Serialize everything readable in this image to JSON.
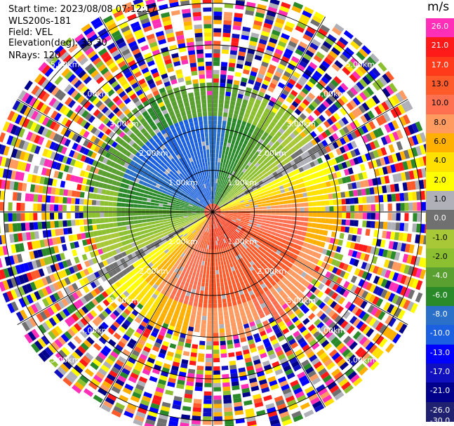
{
  "header": {
    "start_time": "Start time: 2023/08/08 07:12:17",
    "site": "WLS200s-181",
    "field": "Field: VEL",
    "elevation": "Elevation(deg): 35.30",
    "nrays": "NRays: 120"
  },
  "colorbar": {
    "unit": "m/s",
    "ticks": [
      "26.0",
      "21.0",
      "17.0",
      "13.0",
      "10.0",
      "8.0",
      "6.0",
      "4.0",
      "2.0",
      "1.0",
      "0.0",
      "-1.0",
      "-2.0",
      "-4.0",
      "-6.0",
      "-8.0",
      "-10.0",
      "-13.0",
      "-17.0",
      "-21.0",
      "-26.0",
      "-30.0"
    ],
    "colors": [
      "#ff2fb8",
      "#ff1a1a",
      "#ff3a1a",
      "#ff5a2a",
      "#ff7050",
      "#ff9a60",
      "#ffb000",
      "#ffe000",
      "#ffff00",
      "#b0b0b8",
      "#707070",
      "#a8c838",
      "#8cc030",
      "#5aa030",
      "#2a8a2a",
      "#2a70c8",
      "#1a60e0",
      "#0000ff",
      "#1010c0",
      "#00008a",
      "#202070"
    ]
  },
  "chart_data": {
    "type": "heatmap",
    "projection": "polar PPI",
    "field": "VEL",
    "units": "m/s",
    "value_range": [
      -30,
      26
    ],
    "nrays": 120,
    "range_rings": [
      {
        "km": 1.0,
        "label": "1.00km"
      },
      {
        "km": 2.0,
        "label": "2.00km"
      },
      {
        "km": 3.0,
        "label": "3.00km"
      },
      {
        "km": 4.0,
        "label": "4.00km"
      },
      {
        "km": 5.0,
        "label": "5.00km"
      }
    ],
    "max_range_km": 5.4,
    "spoke_azimuths_deg": [
      0,
      30,
      60,
      90,
      120,
      150,
      180,
      210,
      240,
      270,
      300,
      330
    ],
    "regions": [
      {
        "direction": "north-west",
        "range_km": [
          0.3,
          2.8
        ],
        "velocity_ms": -10,
        "color": "blue (approaching)"
      },
      {
        "direction": "north",
        "range_km": [
          0.3,
          2.8
        ],
        "velocity_ms": -6,
        "color": "green"
      },
      {
        "direction": "south-east",
        "range_km": [
          0.3,
          2.8
        ],
        "velocity_ms": 8,
        "color": "orange (receding)"
      },
      {
        "direction": "near center south-east",
        "range_km": [
          0,
          0.8
        ],
        "velocity_ms": 13,
        "color": "red"
      },
      {
        "direction": "east / south edge",
        "range_km": [
          2.5,
          3.2
        ],
        "velocity_ms": 4,
        "color": "yellow"
      },
      {
        "direction": "all",
        "range_km": [
          3.0,
          5.4
        ],
        "velocity_ms": null,
        "color": "noisy / no-signal speckle"
      }
    ]
  }
}
